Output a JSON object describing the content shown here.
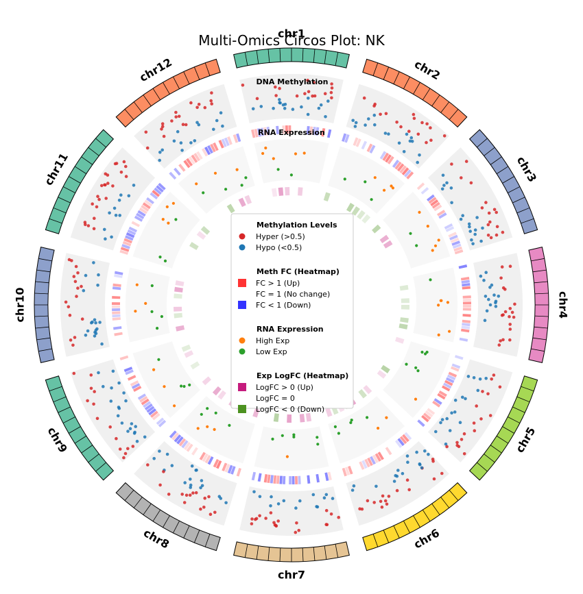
{
  "chart_data": {
    "type": "circos",
    "title": "Multi-Omics Circos Plot: NK",
    "chromosomes": [
      {
        "name": "chr1",
        "color": "#66c2a5"
      },
      {
        "name": "chr2",
        "color": "#fc8d62"
      },
      {
        "name": "chr3",
        "color": "#8da0cb"
      },
      {
        "name": "chr4",
        "color": "#e78ac3"
      },
      {
        "name": "chr5",
        "color": "#a6d854"
      },
      {
        "name": "chr6",
        "color": "#ffd92f"
      },
      {
        "name": "chr7",
        "color": "#e5c494"
      },
      {
        "name": "chr8",
        "color": "#b3b3b3"
      },
      {
        "name": "chr9",
        "color": "#66c2a5"
      },
      {
        "name": "chr10",
        "color": "#8da0cb"
      },
      {
        "name": "chr11",
        "color": "#66c2a5"
      },
      {
        "name": "chr12",
        "color": "#fc8d62"
      }
    ],
    "track_labels": {
      "methylation": "DNA Methylation",
      "expression": "RNA Expression"
    },
    "colors": {
      "hyper": "#d62728",
      "hypo": "#1f77b4",
      "fc_up": "#ff3333",
      "fc_down": "#3333ff",
      "high_exp": "#ff7f0e",
      "low_exp": "#2ca02c",
      "logfc_up": "#c51b7d",
      "logfc_down": "#4d9221"
    },
    "legend": [
      {
        "title": "Methylation Levels",
        "items": [
          {
            "label": "Hyper (>0.5)",
            "marker": "circle",
            "color": "#d62728"
          },
          {
            "label": "Hypo (<0.5)",
            "marker": "circle",
            "color": "#1f77b4"
          }
        ]
      },
      {
        "title": "Meth FC (Heatmap)",
        "items": [
          {
            "label": "FC > 1 (Up)",
            "marker": "square",
            "color": "#ff3333"
          },
          {
            "label": "FC = 1 (No change)",
            "marker": "square",
            "color": "#ffffff"
          },
          {
            "label": "FC < 1 (Down)",
            "marker": "square",
            "color": "#3333ff"
          }
        ]
      },
      {
        "title": "RNA Expression",
        "items": [
          {
            "label": "High Exp",
            "marker": "circle",
            "color": "#ff7f0e"
          },
          {
            "label": "Low Exp",
            "marker": "circle",
            "color": "#2ca02c"
          }
        ]
      },
      {
        "title": "Exp LogFC (Heatmap)",
        "items": [
          {
            "label": "LogFC > 0 (Up)",
            "marker": "square",
            "color": "#c51b7d"
          },
          {
            "label": "LogFC = 0",
            "marker": "square",
            "color": "#ffffff"
          },
          {
            "label": "LogFC < 0 (Down)",
            "marker": "square",
            "color": "#4d9221"
          }
        ]
      }
    ]
  }
}
